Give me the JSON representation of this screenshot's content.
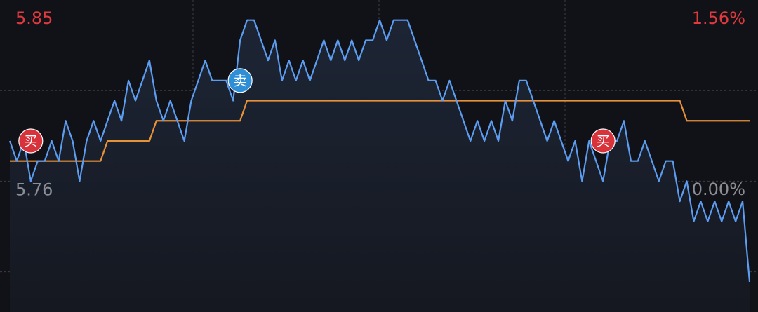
{
  "chart_data": {
    "type": "line",
    "ylim": [
      5.695,
      5.85
    ],
    "yticks": [
      5.85,
      5.76
    ],
    "ytick_colors": [
      "#e0393e",
      "#8b8e95"
    ],
    "y2lim": [
      -1.13,
      1.56
    ],
    "y2ticks": [
      {
        "value": 1.56,
        "label": "1.56%"
      },
      {
        "value": 0,
        "label": "0.00%"
      }
    ],
    "grid_y": [
      5.805,
      5.76,
      5.715
    ],
    "series": [
      {
        "color": "#5c9df2",
        "values": [
          5.78,
          5.77,
          5.78,
          5.76,
          5.77,
          5.77,
          5.78,
          5.77,
          5.79,
          5.78,
          5.76,
          5.78,
          5.79,
          5.78,
          5.79,
          5.8,
          5.79,
          5.81,
          5.8,
          5.81,
          5.82,
          5.8,
          5.79,
          5.8,
          5.79,
          5.78,
          5.8,
          5.81,
          5.82,
          5.81,
          5.81,
          5.81,
          5.8,
          5.83,
          5.84,
          5.84,
          5.83,
          5.82,
          5.83,
          5.81,
          5.82,
          5.81,
          5.82,
          5.81,
          5.82,
          5.83,
          5.82,
          5.83,
          5.82,
          5.83,
          5.82,
          5.83,
          5.83,
          5.84,
          5.83,
          5.84,
          5.84,
          5.84,
          5.83,
          5.82,
          5.81,
          5.81,
          5.8,
          5.81,
          5.8,
          5.79,
          5.78,
          5.79,
          5.78,
          5.79,
          5.78,
          5.8,
          5.79,
          5.81,
          5.81,
          5.8,
          5.79,
          5.78,
          5.79,
          5.78,
          5.77,
          5.78,
          5.76,
          5.78,
          5.77,
          5.76,
          5.78,
          5.78,
          5.79,
          5.77,
          5.77,
          5.78,
          5.77,
          5.76,
          5.77,
          5.77,
          5.75,
          5.76,
          5.74,
          5.75,
          5.74,
          5.75,
          5.74,
          5.75,
          5.74,
          5.75,
          5.71
        ]
      },
      {
        "color": "#e8913b",
        "values": [
          5.77,
          5.77,
          5.77,
          5.77,
          5.77,
          5.77,
          5.77,
          5.77,
          5.77,
          5.77,
          5.77,
          5.77,
          5.77,
          5.77,
          5.78,
          5.78,
          5.78,
          5.78,
          5.78,
          5.78,
          5.78,
          5.79,
          5.79,
          5.79,
          5.79,
          5.79,
          5.79,
          5.79,
          5.79,
          5.79,
          5.79,
          5.79,
          5.79,
          5.79,
          5.8,
          5.8,
          5.8,
          5.8,
          5.8,
          5.8,
          5.8,
          5.8,
          5.8,
          5.8,
          5.8,
          5.8,
          5.8,
          5.8,
          5.8,
          5.8,
          5.8,
          5.8,
          5.8,
          5.8,
          5.8,
          5.8,
          5.8,
          5.8,
          5.8,
          5.8,
          5.8,
          5.8,
          5.8,
          5.8,
          5.8,
          5.8,
          5.8,
          5.8,
          5.8,
          5.8,
          5.8,
          5.8,
          5.8,
          5.8,
          5.8,
          5.8,
          5.8,
          5.8,
          5.8,
          5.8,
          5.8,
          5.8,
          5.8,
          5.8,
          5.8,
          5.8,
          5.8,
          5.8,
          5.8,
          5.8,
          5.8,
          5.8,
          5.8,
          5.8,
          5.8,
          5.8,
          5.8,
          5.79,
          5.79,
          5.79,
          5.79,
          5.79,
          5.79,
          5.79,
          5.79,
          5.79,
          5.79
        ]
      }
    ],
    "trades": [
      {
        "label": "买",
        "index": 3,
        "price": 5.78,
        "color": "#d8323b"
      },
      {
        "label": "卖",
        "index": 33,
        "price": 5.81,
        "color": "#2f8fd6"
      },
      {
        "label": "买",
        "index": 85,
        "price": 5.78,
        "color": "#d8323b"
      }
    ]
  }
}
